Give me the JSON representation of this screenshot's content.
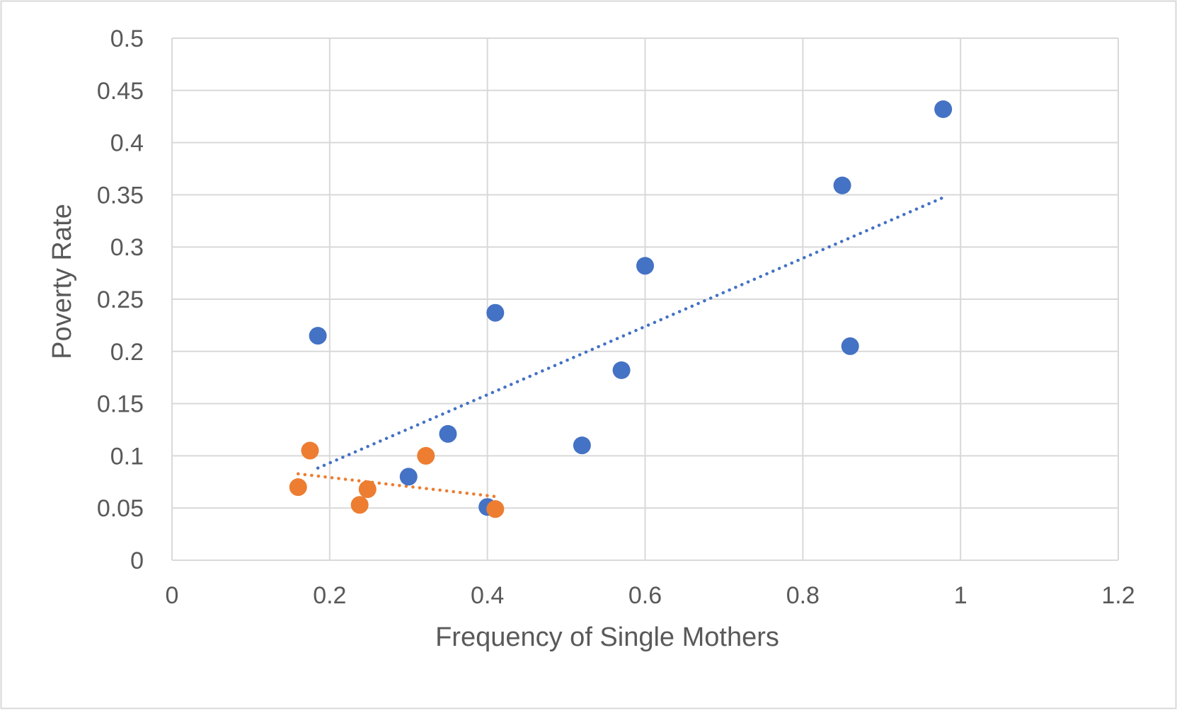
{
  "chart_data": {
    "type": "scatter",
    "title": "",
    "xlabel": "Frequency of Single Mothers",
    "ylabel": "Poverty Rate",
    "xlim": [
      0,
      1.2
    ],
    "ylim": [
      0,
      0.5
    ],
    "x_ticks": [
      "0",
      "0.2",
      "0.4",
      "0.6",
      "0.8",
      "1",
      "1.2"
    ],
    "y_ticks": [
      "0",
      "0.05",
      "0.1",
      "0.15",
      "0.2",
      "0.25",
      "0.3",
      "0.35",
      "0.4",
      "0.45",
      "0.5"
    ],
    "grid": true,
    "legend": "none",
    "series": [
      {
        "color": "#4472C4",
        "trendline": "linear",
        "points": [
          {
            "x": 0.185,
            "y": 0.215
          },
          {
            "x": 0.3,
            "y": 0.08
          },
          {
            "x": 0.35,
            "y": 0.121
          },
          {
            "x": 0.4,
            "y": 0.051
          },
          {
            "x": 0.41,
            "y": 0.237
          },
          {
            "x": 0.52,
            "y": 0.11
          },
          {
            "x": 0.57,
            "y": 0.182
          },
          {
            "x": 0.6,
            "y": 0.282
          },
          {
            "x": 0.85,
            "y": 0.359
          },
          {
            "x": 0.86,
            "y": 0.205
          },
          {
            "x": 0.978,
            "y": 0.432
          }
        ]
      },
      {
        "color": "#ED7D31",
        "trendline": "linear",
        "points": [
          {
            "x": 0.16,
            "y": 0.07
          },
          {
            "x": 0.175,
            "y": 0.105
          },
          {
            "x": 0.238,
            "y": 0.053
          },
          {
            "x": 0.248,
            "y": 0.068
          },
          {
            "x": 0.322,
            "y": 0.1
          },
          {
            "x": 0.41,
            "y": 0.049
          }
        ]
      }
    ]
  }
}
